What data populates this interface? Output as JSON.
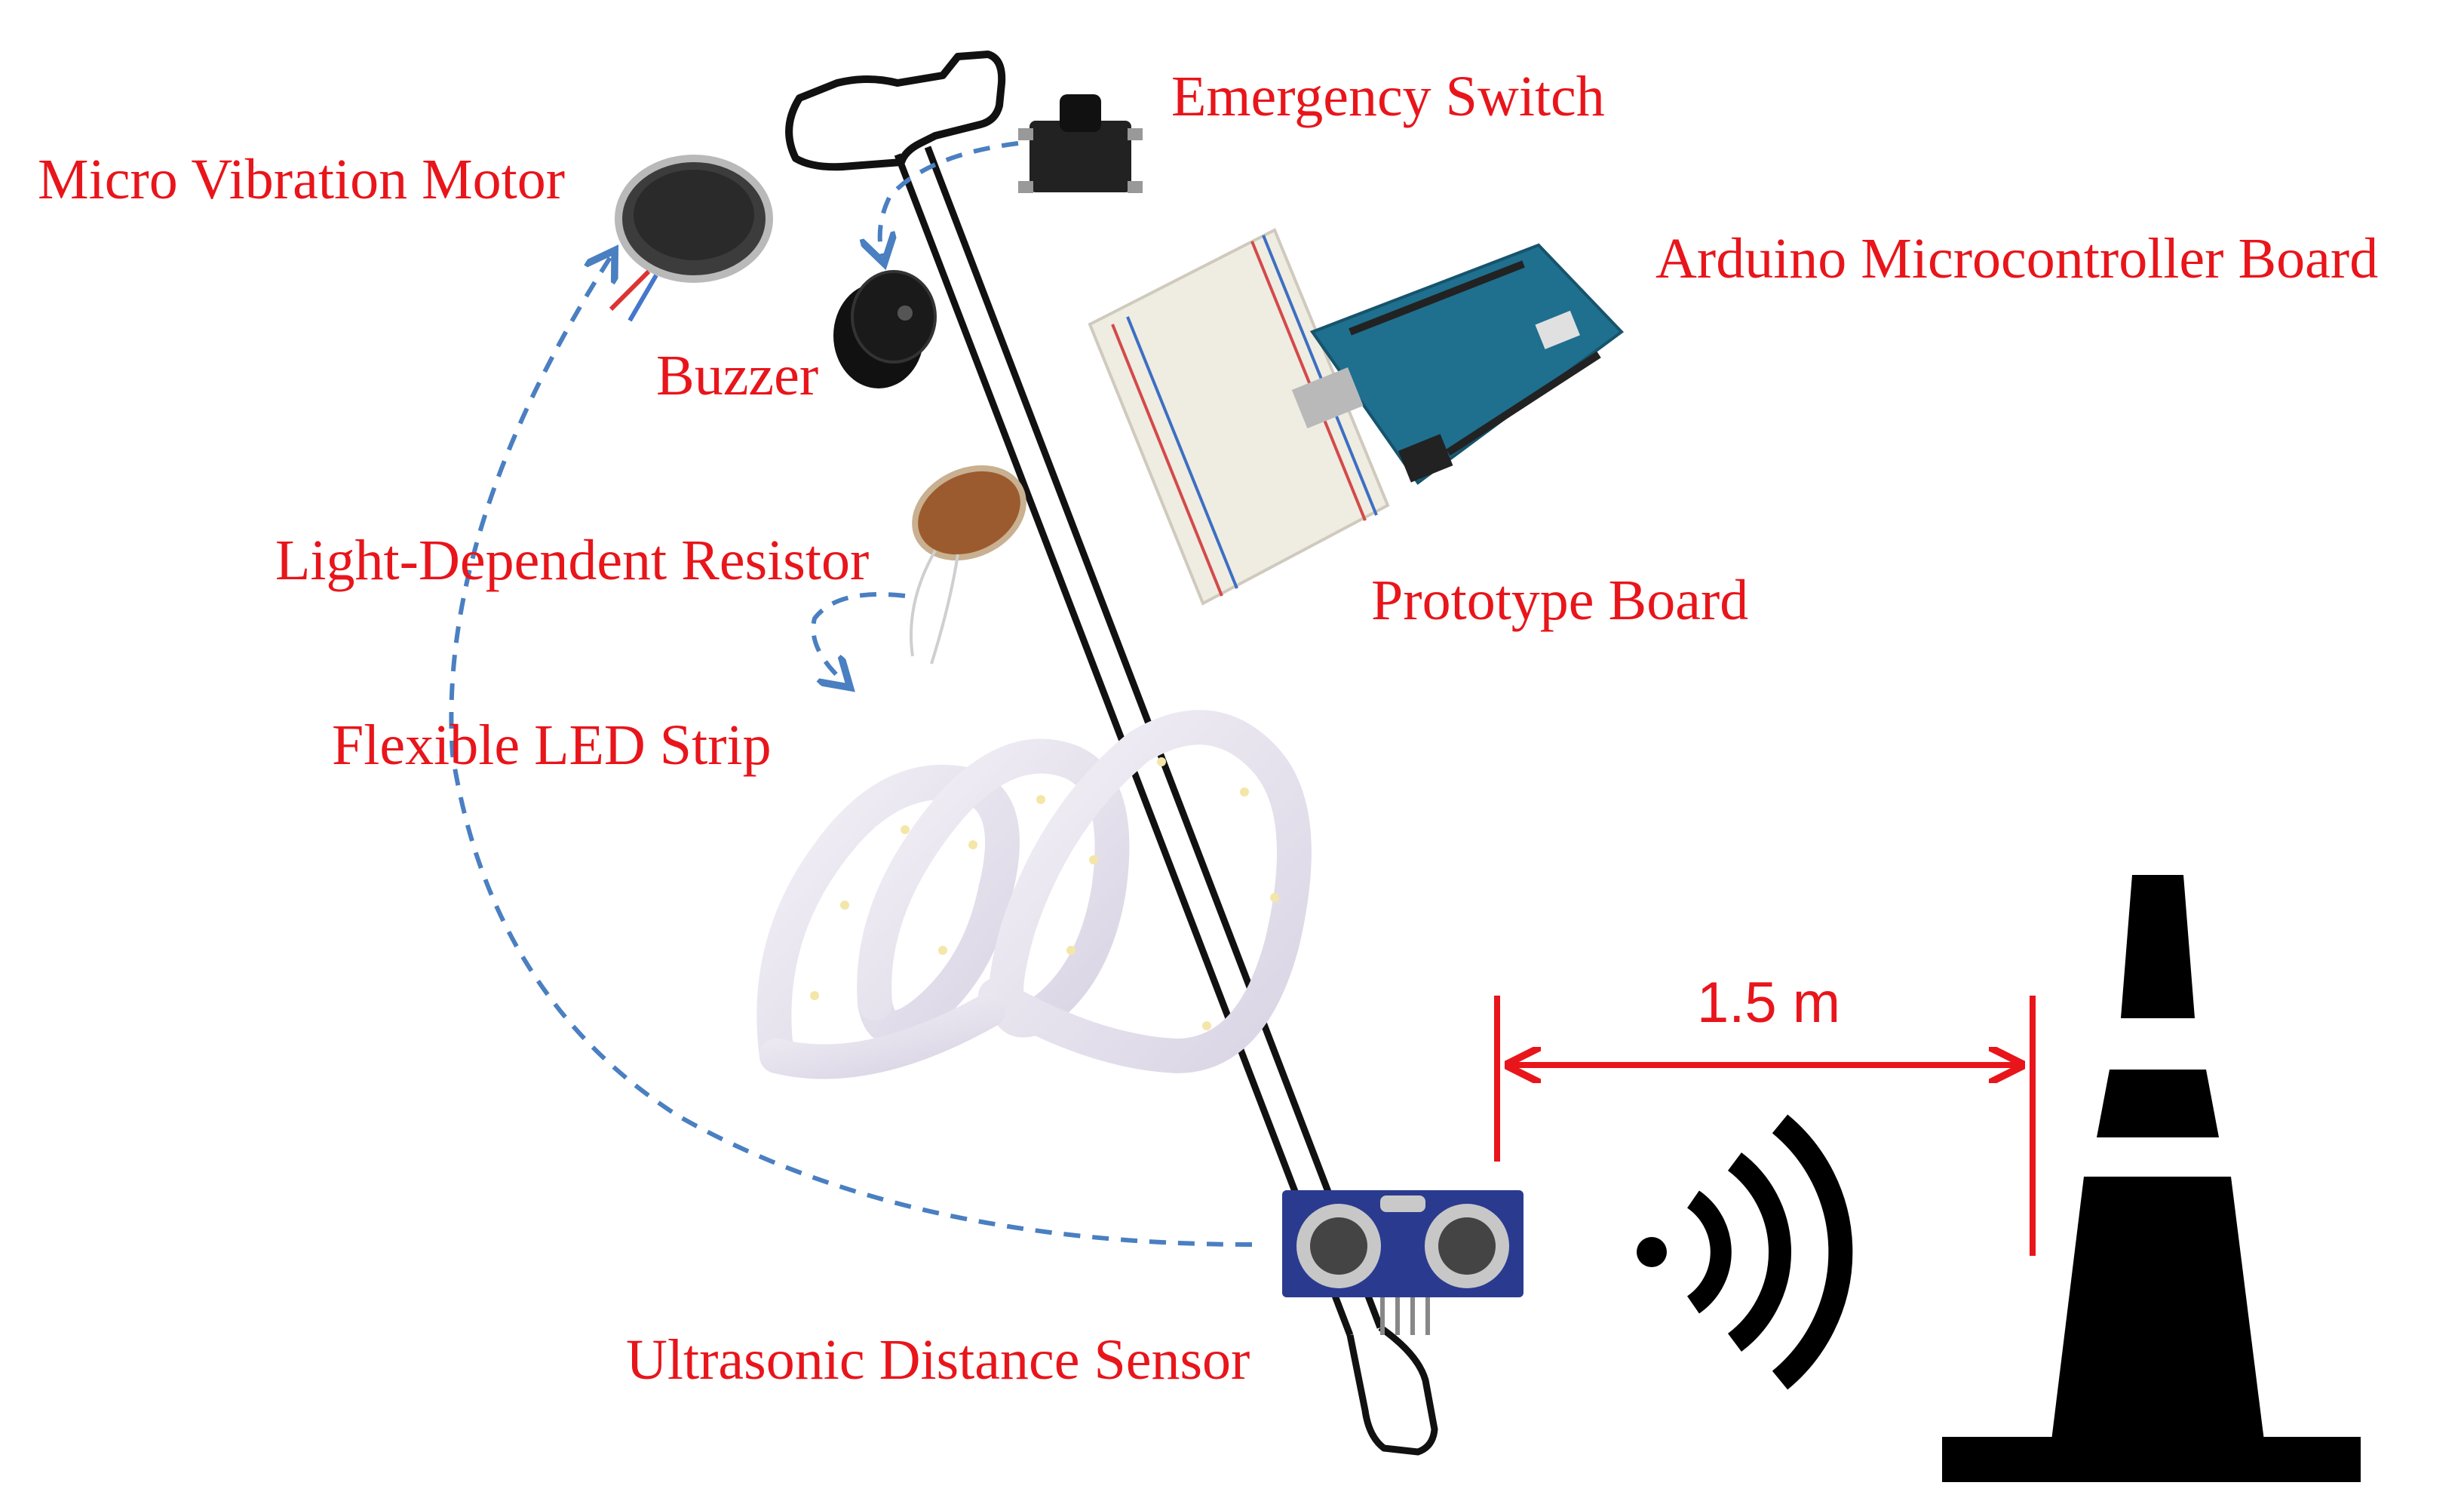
{
  "labels": {
    "emergency_switch": "Emergency Switch",
    "micro_vibration_motor": "Micro Vibration Motor",
    "arduino_board": "Arduino Microcontroller Board",
    "buzzer": "Buzzer",
    "ldr": "Light-Dependent Resistor",
    "prototype_board": "Prototype Board",
    "led_strip": "Flexible LED Strip",
    "ultrasonic_sensor": "Ultrasonic Distance Sensor",
    "distance": "1.5 m"
  },
  "colors": {
    "label": "#e8151b",
    "arrow": "#4a7fc1",
    "cane_outline": "#111111",
    "cone": "#000000",
    "arduino": "#1f6f8f",
    "breadboard": "#f2f0e6",
    "sensor": "#2a3b8f",
    "led_strip": "#e6e2ee"
  },
  "icons": {
    "wave_signal": "wifi-signal-icon",
    "obstacle": "traffic-cone-icon"
  }
}
